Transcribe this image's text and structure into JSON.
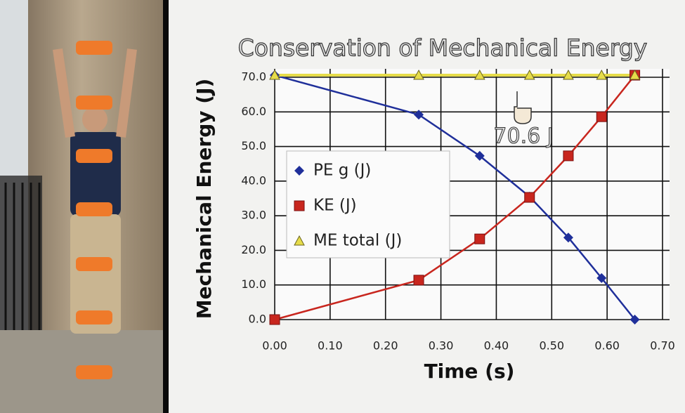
{
  "chart_data": {
    "type": "line",
    "title": "Conservation of Mechanical Energy",
    "annotation": "70.6 J",
    "x_label": "Time (s)",
    "y_label": "Mechanical Energy (J)",
    "x": [
      0,
      0.26,
      0.37,
      0.46,
      0.53,
      0.59,
      0.65
    ],
    "series": [
      {
        "name": "PE g (J)",
        "color": "#1f2f9a",
        "marker": "diamond",
        "values": [
          70.6,
          59.2,
          47.3,
          35.5,
          23.7,
          12.0,
          0
        ]
      },
      {
        "name": "KE (J)",
        "color": "#c8261e",
        "marker": "square",
        "values": [
          0,
          11.4,
          23.3,
          35.3,
          47.3,
          58.6,
          70.6
        ]
      },
      {
        "name": "ME total (J)",
        "color": "#e6dc4a",
        "marker": "triangle",
        "values": [
          70.6,
          70.6,
          70.6,
          70.6,
          70.6,
          70.6,
          70.6
        ]
      }
    ],
    "xlim": [
      0,
      0.7
    ],
    "ylim": [
      0,
      70
    ],
    "xticks": [
      {
        "value": 0,
        "label": "0.00"
      },
      {
        "value": 0.1,
        "label": "0.10"
      },
      {
        "value": 0.2,
        "label": "0.20"
      },
      {
        "value": 0.3,
        "label": "0.30"
      },
      {
        "value": 0.4,
        "label": "0.40"
      },
      {
        "value": 0.5,
        "label": "0.50"
      },
      {
        "value": 0.6,
        "label": "0.60"
      },
      {
        "value": 0.7,
        "label": "0.70"
      }
    ],
    "yticks": [
      {
        "value": 0,
        "label": "0.0"
      },
      {
        "value": 10,
        "label": "10.0"
      },
      {
        "value": 20,
        "label": "20.0"
      },
      {
        "value": 30,
        "label": "30.0"
      },
      {
        "value": 40,
        "label": "40.0"
      },
      {
        "value": 50,
        "label": "50.0"
      },
      {
        "value": 60,
        "label": "60.0"
      },
      {
        "value": 70,
        "label": "70.0"
      }
    ],
    "grid": true
  }
}
